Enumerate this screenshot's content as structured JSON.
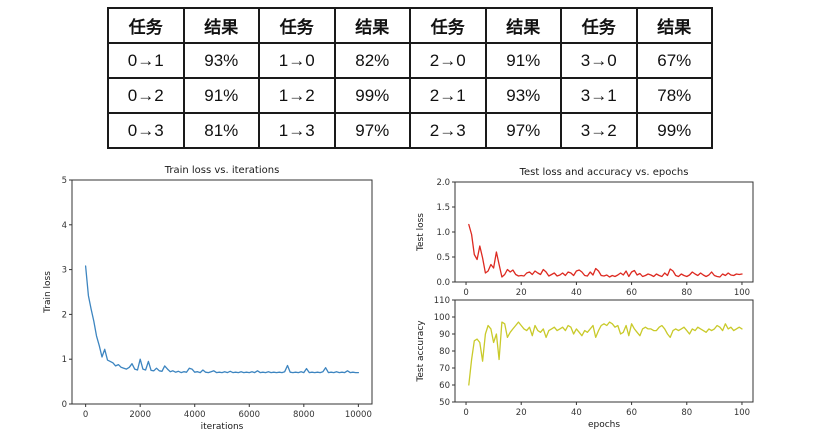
{
  "colors": {
    "train_line": "#3d85c0",
    "test_loss_line": "#dd2a21",
    "test_acc_line": "#c9ca2a",
    "axis": "#333333",
    "table_border": "#1a1a1a"
  },
  "results_table": {
    "headers": [
      "任务",
      "结果",
      "任务",
      "结果",
      "任务",
      "结果",
      "任务",
      "结果"
    ],
    "rows": [
      [
        "0→1",
        "93%",
        "1→0",
        "82%",
        "2→0",
        "91%",
        "3→0",
        "67%"
      ],
      [
        "0→2",
        "91%",
        "1→2",
        "99%",
        "2→1",
        "93%",
        "3→1",
        "78%"
      ],
      [
        "0→3",
        "81%",
        "1→3",
        "97%",
        "2→3",
        "97%",
        "3→2",
        "99%"
      ]
    ]
  },
  "chart_data": [
    {
      "id": "train_loss",
      "type": "line",
      "title": "Train loss vs. iterations",
      "xlabel": "iterations",
      "ylabel": "Train loss",
      "xlim": [
        -500,
        10500
      ],
      "ylim": [
        0,
        5
      ],
      "grid": false,
      "legend": "none",
      "xticks": [
        {
          "v": 0,
          "l": "0"
        },
        {
          "v": 2000,
          "l": "2000"
        },
        {
          "v": 4000,
          "l": "4000"
        },
        {
          "v": 6000,
          "l": "6000"
        },
        {
          "v": 8000,
          "l": "8000"
        },
        {
          "v": 10000,
          "l": "10000"
        }
      ],
      "yticks": [
        {
          "v": 0,
          "l": "0"
        },
        {
          "v": 1,
          "l": "1"
        },
        {
          "v": 2,
          "l": "2"
        },
        {
          "v": 3,
          "l": "3"
        },
        {
          "v": 4,
          "l": "4"
        },
        {
          "v": 5,
          "l": "5"
        }
      ],
      "series": [
        {
          "name": "train loss",
          "color": "#3d85c0",
          "x_start": 0,
          "x_step": 100,
          "y": [
            3.08,
            2.42,
            2.12,
            1.85,
            1.52,
            1.3,
            1.05,
            1.22,
            0.98,
            0.95,
            0.92,
            0.85,
            0.88,
            0.82,
            0.8,
            0.78,
            0.82,
            0.9,
            0.78,
            0.76,
            1.0,
            0.78,
            0.76,
            0.95,
            0.75,
            0.74,
            0.8,
            0.74,
            0.73,
            0.85,
            0.78,
            0.72,
            0.74,
            0.71,
            0.73,
            0.7,
            0.72,
            0.71,
            0.8,
            0.78,
            0.71,
            0.72,
            0.7,
            0.76,
            0.71,
            0.7,
            0.72,
            0.74,
            0.7,
            0.71,
            0.7,
            0.72,
            0.7,
            0.73,
            0.7,
            0.71,
            0.7,
            0.72,
            0.7,
            0.71,
            0.7,
            0.72,
            0.7,
            0.74,
            0.7,
            0.71,
            0.7,
            0.72,
            0.7,
            0.71,
            0.7,
            0.71,
            0.7,
            0.72,
            0.86,
            0.71,
            0.7,
            0.71,
            0.7,
            0.72,
            0.7,
            0.79,
            0.7,
            0.71,
            0.7,
            0.71,
            0.7,
            0.72,
            0.81,
            0.7,
            0.71,
            0.7,
            0.72,
            0.7,
            0.71,
            0.7,
            0.74,
            0.7,
            0.71,
            0.7,
            0.7
          ]
        }
      ]
    },
    {
      "id": "test_loss",
      "type": "line",
      "title": "Test loss and accuracy vs. epochs",
      "xlabel": "",
      "ylabel": "Test loss",
      "xlim": [
        -4,
        104
      ],
      "ylim": [
        0,
        2
      ],
      "grid": false,
      "legend": "none",
      "xticks": [
        {
          "v": 0,
          "l": "0"
        },
        {
          "v": 20,
          "l": "20"
        },
        {
          "v": 40,
          "l": "40"
        },
        {
          "v": 60,
          "l": "60"
        },
        {
          "v": 80,
          "l": "80"
        },
        {
          "v": 100,
          "l": "100"
        }
      ],
      "yticks": [
        {
          "v": 0,
          "l": "0.0"
        },
        {
          "v": 0.5,
          "l": "0.5"
        },
        {
          "v": 1,
          "l": "1.0"
        },
        {
          "v": 1.5,
          "l": "1.5"
        },
        {
          "v": 2,
          "l": "2.0"
        }
      ],
      "series": [
        {
          "name": "test loss",
          "color": "#dd2a21",
          "x_start": 1,
          "x_step": 1,
          "y": [
            1.15,
            0.95,
            0.55,
            0.45,
            0.72,
            0.48,
            0.18,
            0.22,
            0.35,
            0.28,
            0.6,
            0.35,
            0.1,
            0.15,
            0.25,
            0.2,
            0.24,
            0.15,
            0.12,
            0.13,
            0.12,
            0.18,
            0.2,
            0.15,
            0.22,
            0.18,
            0.15,
            0.25,
            0.2,
            0.12,
            0.15,
            0.18,
            0.12,
            0.14,
            0.18,
            0.13,
            0.2,
            0.18,
            0.13,
            0.22,
            0.24,
            0.2,
            0.13,
            0.12,
            0.2,
            0.14,
            0.27,
            0.22,
            0.13,
            0.12,
            0.14,
            0.1,
            0.13,
            0.11,
            0.14,
            0.18,
            0.14,
            0.22,
            0.11,
            0.2,
            0.23,
            0.14,
            0.17,
            0.11,
            0.13,
            0.16,
            0.14,
            0.11,
            0.16,
            0.13,
            0.11,
            0.18,
            0.13,
            0.26,
            0.22,
            0.13,
            0.11,
            0.16,
            0.13,
            0.11,
            0.14,
            0.2,
            0.16,
            0.13,
            0.18,
            0.14,
            0.11,
            0.14,
            0.2,
            0.13,
            0.11,
            0.1,
            0.16,
            0.13,
            0.18,
            0.14,
            0.13,
            0.16,
            0.15,
            0.16
          ]
        }
      ]
    },
    {
      "id": "test_accuracy",
      "type": "line",
      "title": "",
      "xlabel": "epochs",
      "ylabel": "Test accuracy",
      "xlim": [
        -4,
        104
      ],
      "ylim": [
        50,
        110
      ],
      "grid": false,
      "legend": "none",
      "xticks": [
        {
          "v": 0,
          "l": "0"
        },
        {
          "v": 20,
          "l": "20"
        },
        {
          "v": 40,
          "l": "40"
        },
        {
          "v": 60,
          "l": "60"
        },
        {
          "v": 80,
          "l": "80"
        },
        {
          "v": 100,
          "l": "100"
        }
      ],
      "yticks": [
        {
          "v": 50,
          "l": "50"
        },
        {
          "v": 60,
          "l": "60"
        },
        {
          "v": 70,
          "l": "70"
        },
        {
          "v": 80,
          "l": "80"
        },
        {
          "v": 90,
          "l": "90"
        },
        {
          "v": 100,
          "l": "100"
        },
        {
          "v": 110,
          "l": "110"
        }
      ],
      "series": [
        {
          "name": "test accuracy",
          "color": "#c9ca2a",
          "x_start": 1,
          "x_step": 1,
          "y": [
            60,
            75,
            86,
            87,
            85,
            74,
            90,
            95,
            93,
            85,
            90,
            75,
            97,
            96,
            88,
            91,
            93,
            95,
            97,
            95,
            93,
            92,
            94,
            89,
            95,
            92,
            91,
            93,
            88,
            92,
            93,
            94,
            92,
            93,
            94,
            92,
            95,
            94,
            90,
            93,
            91,
            89,
            92,
            91,
            93,
            95,
            88,
            92,
            95,
            96,
            95,
            97,
            96,
            94,
            95,
            90,
            91,
            95,
            89,
            96,
            93,
            91,
            89,
            93,
            94,
            93,
            93,
            92,
            92,
            94,
            95,
            93,
            90,
            88,
            92,
            93,
            92,
            93,
            94,
            92,
            90,
            93,
            92,
            94,
            93,
            92,
            91,
            93,
            92,
            93,
            95,
            94,
            92,
            96,
            93,
            94,
            92,
            93,
            94,
            93
          ]
        }
      ]
    }
  ]
}
